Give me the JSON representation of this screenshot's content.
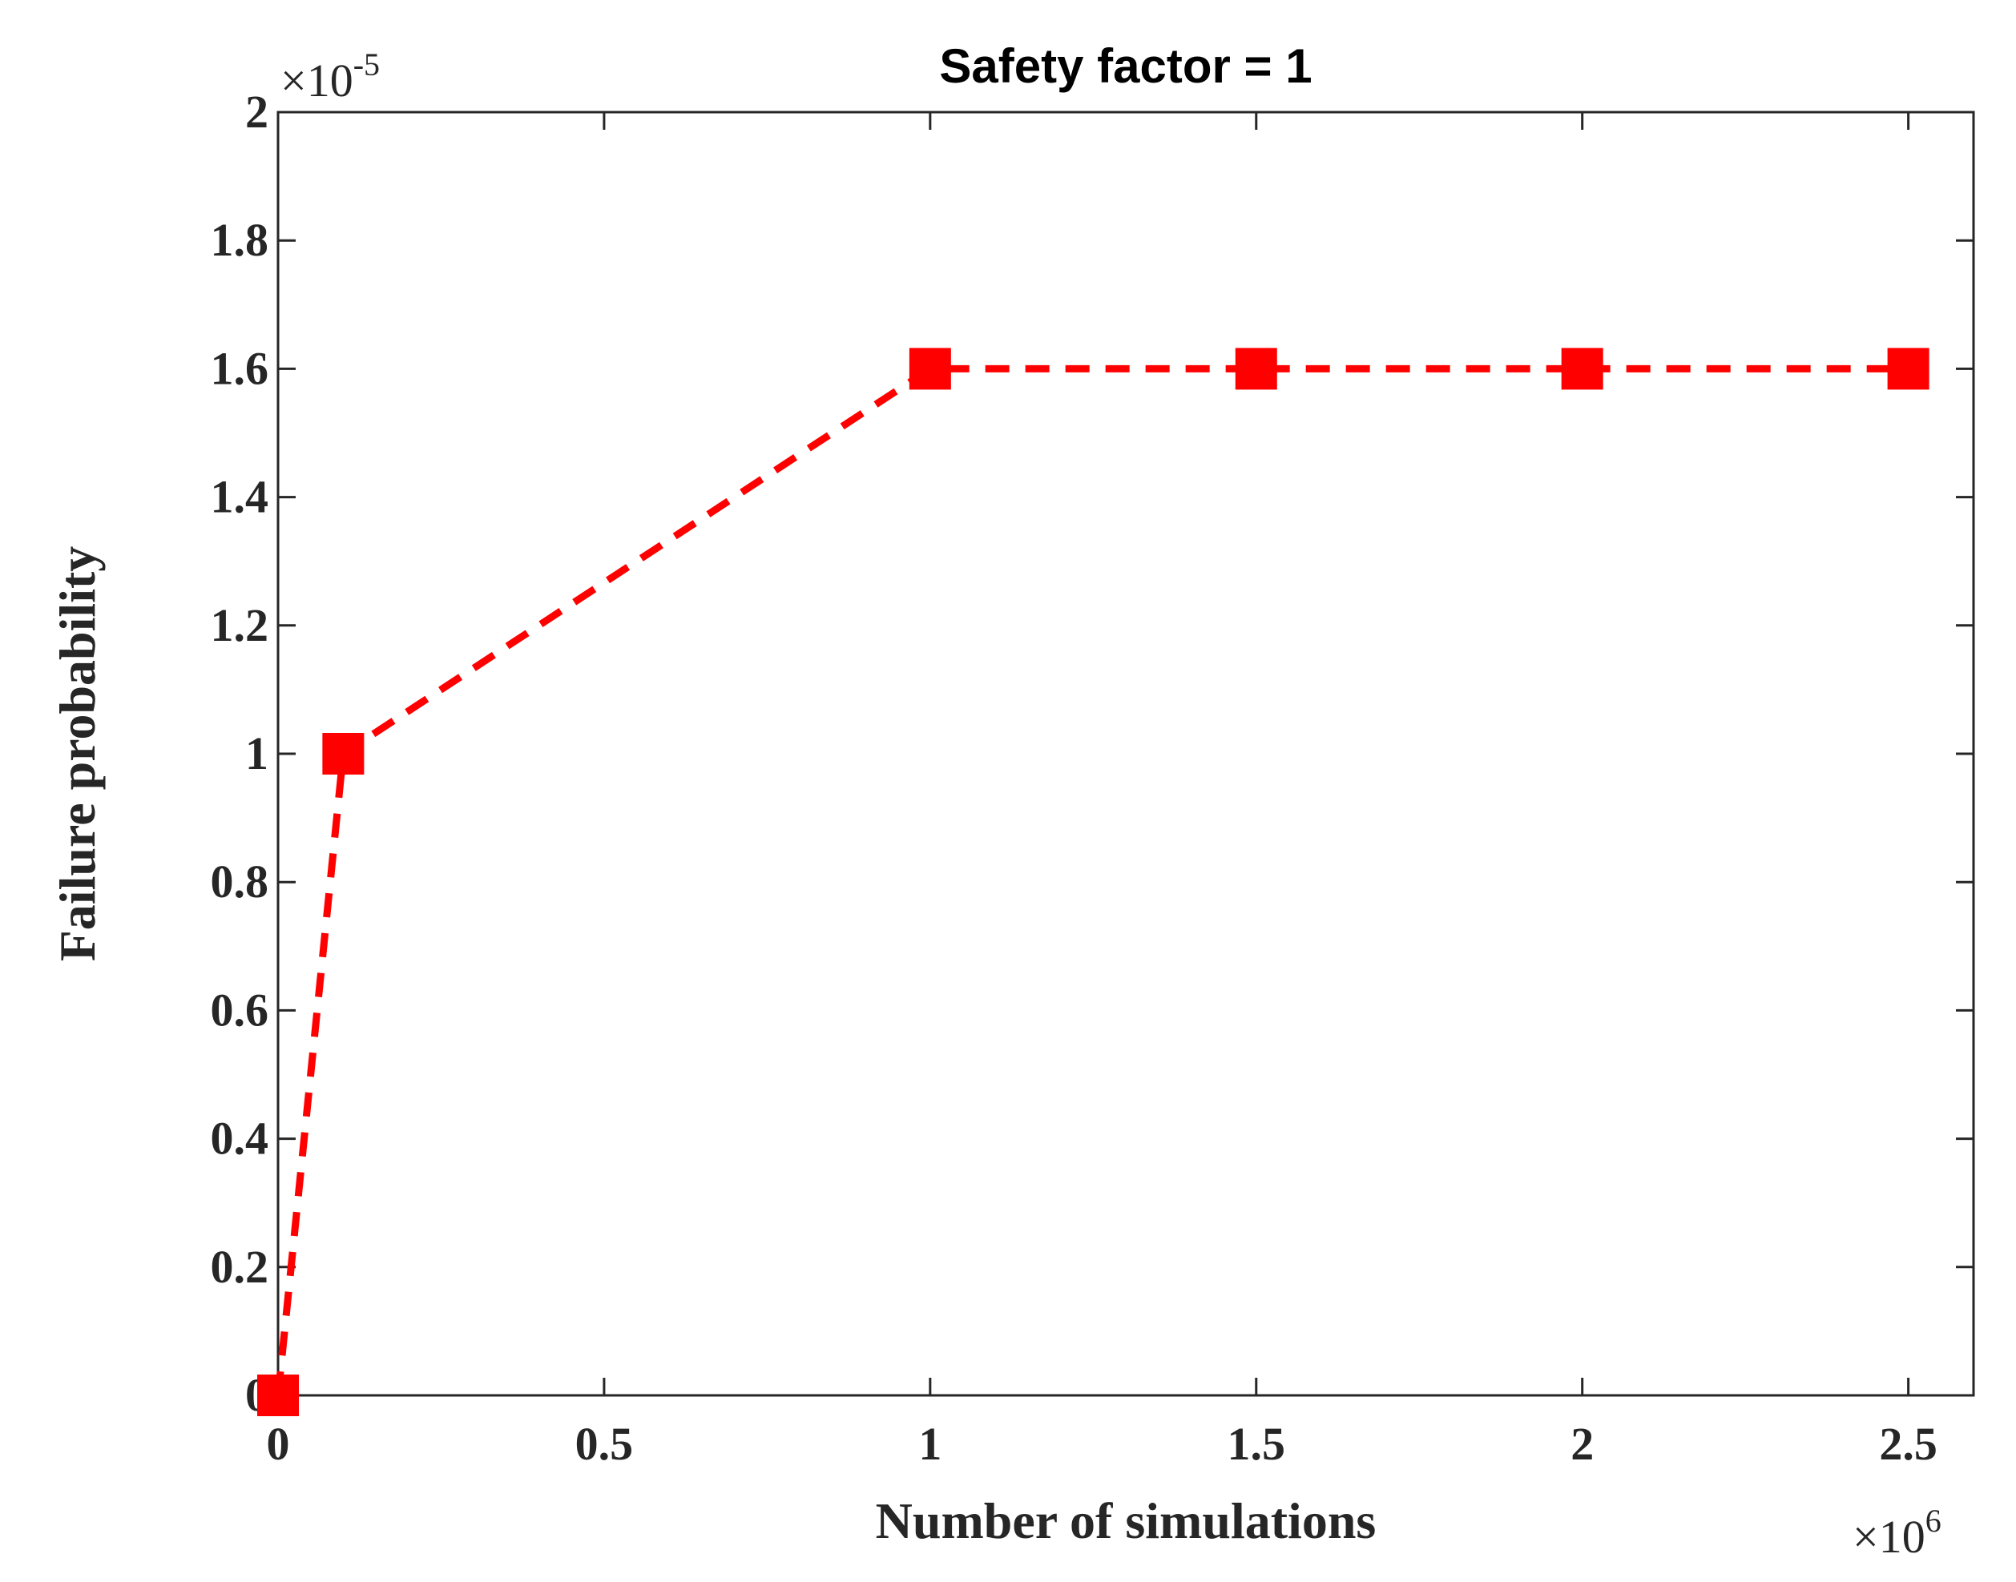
{
  "chart_data": {
    "type": "line",
    "title": "Safety factor = 1",
    "xlabel": "Number of simulations",
    "ylabel": "Failure probability",
    "x_multiplier": {
      "base": "×10",
      "exponent": "6"
    },
    "y_multiplier": {
      "base": "×10",
      "exponent": "-5"
    },
    "xlim": [
      0,
      2.6
    ],
    "ylim": [
      0,
      2
    ],
    "x_ticks": [
      0,
      0.5,
      1,
      1.5,
      2,
      2.5
    ],
    "x_tick_labels": [
      "0",
      "0.5",
      "1",
      "1.5",
      "2",
      "2.5"
    ],
    "y_ticks": [
      0,
      0.2,
      0.4,
      0.6,
      0.8,
      1,
      1.2,
      1.4,
      1.6,
      1.8,
      2
    ],
    "y_tick_labels": [
      "0",
      "0.2",
      "0.4",
      "0.6",
      "0.8",
      "1",
      "1.2",
      "1.4",
      "1.6",
      "1.8",
      "2"
    ],
    "grid": false,
    "series": [
      {
        "name": "Failure probability",
        "x": [
          0,
          0.1,
          1,
          1.5,
          2,
          2.5
        ],
        "y": [
          0,
          1,
          1.6,
          1.6,
          1.6,
          1.6
        ],
        "color": "#ff0000",
        "line_style": "dashed",
        "marker": "square"
      }
    ]
  }
}
